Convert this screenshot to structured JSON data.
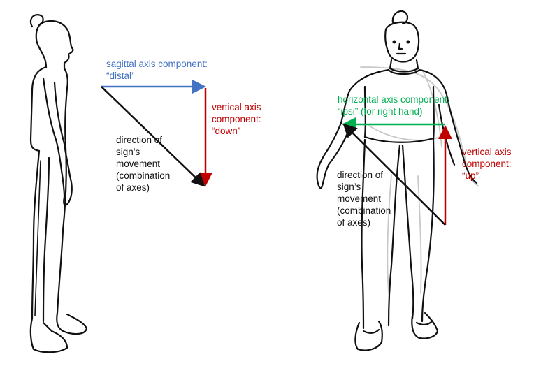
{
  "colors": {
    "sagittal": "#4472c4",
    "vertical": "#c00000",
    "horizontal": "#00b050",
    "movement": "#111111",
    "person_outline": "#111111",
    "person_faint": "#c8c8c8"
  },
  "left_panel": {
    "sagittal_label": [
      "sagittal axis component:",
      "“distal”"
    ],
    "vertical_label": [
      "vertical axis",
      "component:",
      "“down”"
    ],
    "movement_label": [
      "direction of",
      "sign’s",
      "movement",
      "(combination",
      "of axes)"
    ]
  },
  "right_panel": {
    "horizontal_label": [
      "horizontal axis component:",
      "“ipsi” (for right hand)"
    ],
    "vertical_label": [
      "vertical axis",
      "component:",
      "“up”"
    ],
    "movement_label": [
      "direction of",
      "sign’s",
      "movement",
      "(combination",
      "of axes)"
    ]
  }
}
